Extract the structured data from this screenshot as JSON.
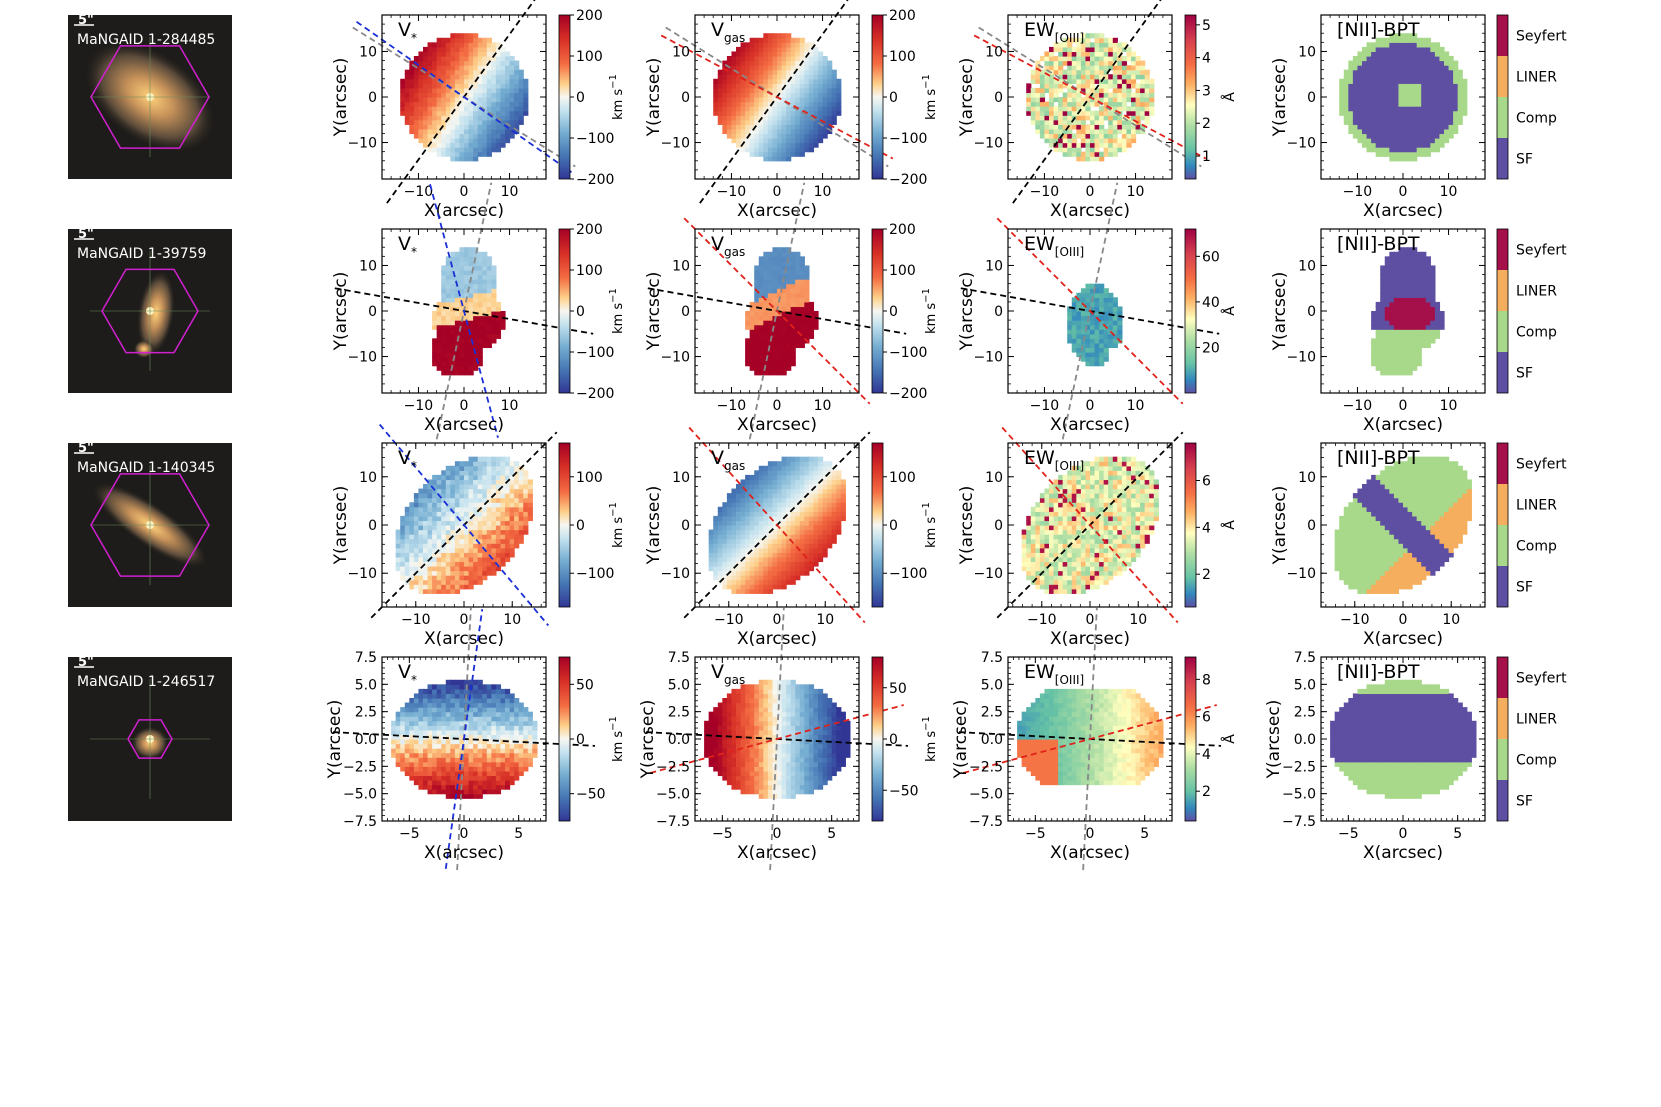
{
  "figure": {
    "scale_bar_label": "5\"",
    "xlabel": "X(arcsec)",
    "ylabel": "Y(arcsec)",
    "vel_unit": "km s",
    "vel_unit_exp": "−1",
    "ew_unit": "Å",
    "panel_titles": {
      "vstar_main": "V",
      "vstar_sub": "*",
      "vgas_main": "V",
      "vgas_sub": "gas",
      "ew_main": "EW",
      "ew_sub": "[OIII]",
      "bpt": "[NII]-BPT"
    },
    "bpt_classes": [
      "Seyfert",
      "LINER",
      "Comp",
      "SF"
    ],
    "bpt_colors": [
      "#a50f4a",
      "#f5ae5e",
      "#a8d98a",
      "#5e4fa2"
    ]
  },
  "chart_data": [
    {
      "type": "heatmap",
      "galaxy": "MaNGAID 1-284485",
      "xlim": [
        -18,
        18
      ],
      "ylim": [
        -18,
        18
      ],
      "xticks": [
        -10,
        0,
        10
      ],
      "yticks": [
        -10,
        0,
        10
      ],
      "xtick_labels": [
        "−10",
        "0",
        "10"
      ],
      "ytick_labels": [
        "−10",
        "0",
        "10"
      ],
      "vstar_cbar": {
        "range": [
          -200,
          200
        ],
        "ticks": [
          200,
          100,
          0,
          -100,
          -200
        ],
        "labels": [
          "200",
          "100",
          "0",
          "−100",
          "−200"
        ]
      },
      "vgas_cbar": {
        "range": [
          -200,
          200
        ],
        "ticks": [
          200,
          100,
          0,
          -100,
          -200
        ],
        "labels": [
          "200",
          "100",
          "0",
          "−100",
          "−200"
        ]
      },
      "ew_cbar": {
        "range": [
          0.3,
          5.3
        ],
        "ticks": [
          5,
          4,
          3,
          2,
          1
        ],
        "labels": [
          "5",
          "4",
          "3",
          "2",
          "1"
        ]
      },
      "pa_black": 36,
      "pa_gray": 122,
      "pa_blue": 125,
      "pa_red": 118
    },
    {
      "type": "heatmap",
      "galaxy": "MaNGAID 1-39759",
      "xlim": [
        -18,
        18
      ],
      "ylim": [
        -18,
        18
      ],
      "xticks": [
        -10,
        0,
        10
      ],
      "yticks": [
        -10,
        0,
        10
      ],
      "xtick_labels": [
        "−10",
        "0",
        "10"
      ],
      "ytick_labels": [
        "−10",
        "0",
        "10"
      ],
      "vstar_cbar": {
        "range": [
          -200,
          200
        ],
        "ticks": [
          200,
          100,
          0,
          -100,
          -200
        ],
        "labels": [
          "200",
          "100",
          "0",
          "−100",
          "−200"
        ]
      },
      "vgas_cbar": {
        "range": [
          -200,
          200
        ],
        "ticks": [
          200,
          100,
          0,
          -100,
          -200
        ],
        "labels": [
          "200",
          "100",
          "0",
          "−100",
          "−200"
        ]
      },
      "ew_cbar": {
        "range": [
          0,
          72
        ],
        "ticks": [
          60,
          40,
          20
        ],
        "labels": [
          "60",
          "40",
          "20"
        ]
      },
      "pa_black": 100,
      "pa_gray": 12,
      "pa_blue": 165,
      "pa_red": 135
    },
    {
      "type": "heatmap",
      "galaxy": "MaNGAID 1-140345",
      "xlim": [
        -17,
        17
      ],
      "ylim": [
        -17,
        17
      ],
      "xticks": [
        -10,
        0,
        10
      ],
      "yticks": [
        -10,
        0,
        10
      ],
      "xtick_labels": [
        "−10",
        "0",
        "10"
      ],
      "ytick_labels": [
        "−10",
        "0",
        "10"
      ],
      "vstar_cbar": {
        "range": [
          -170,
          170
        ],
        "ticks": [
          100,
          0,
          -100
        ],
        "labels": [
          "100",
          "0",
          "−100"
        ]
      },
      "vgas_cbar": {
        "range": [
          -170,
          170
        ],
        "ticks": [
          100,
          0,
          -100
        ],
        "labels": [
          "100",
          "0",
          "−100"
        ]
      },
      "ew_cbar": {
        "range": [
          0.6,
          7.6
        ],
        "ticks": [
          6,
          4,
          2
        ],
        "labels": [
          "6",
          "4",
          "2"
        ]
      },
      "pa_black": 45,
      "pa_gray": null,
      "pa_blue": 140,
      "pa_red": 138
    },
    {
      "type": "heatmap",
      "galaxy": "MaNGAID 1-246517",
      "xlim": [
        -7.5,
        7.5
      ],
      "ylim": [
        -7.5,
        7.5
      ],
      "xticks": [
        -5,
        0,
        5
      ],
      "yticks": [
        7.5,
        5.0,
        2.5,
        0.0,
        -2.5,
        -5.0,
        -7.5
      ],
      "xtick_labels": [
        "−5",
        "0",
        "5"
      ],
      "ytick_labels": [
        "7.5",
        "5.0",
        "2.5",
        "0.0",
        "−2.5",
        "−5.0",
        "−7.5"
      ],
      "vstar_cbar": {
        "range": [
          -75,
          75
        ],
        "ticks": [
          50,
          0,
          -50
        ],
        "labels": [
          "50",
          "0",
          "−50"
        ]
      },
      "vgas_cbar": {
        "range": [
          -80,
          80
        ],
        "ticks": [
          50,
          0,
          -50
        ],
        "labels": [
          "50",
          "0",
          "−50"
        ]
      },
      "ew_cbar": {
        "range": [
          0.4,
          9.2
        ],
        "ticks": [
          8,
          6,
          4,
          2
        ],
        "labels": [
          "8",
          "6",
          "4",
          "2"
        ]
      },
      "pa_black": 93,
      "pa_gray": 3,
      "pa_blue": 8,
      "pa_red": 75
    }
  ]
}
